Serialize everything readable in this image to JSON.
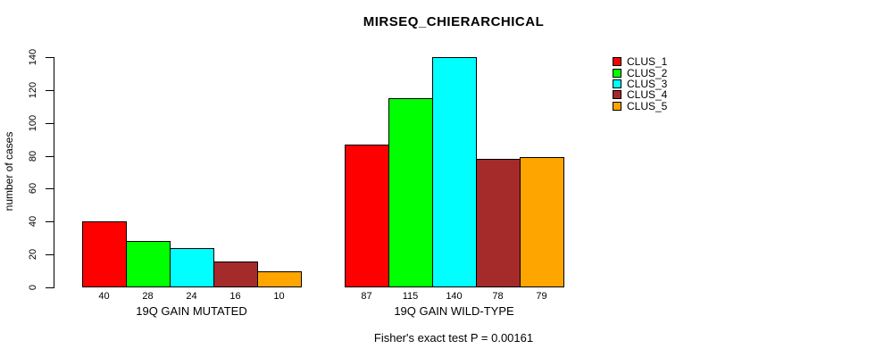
{
  "chart_data": {
    "type": "bar",
    "title": "MIRSEQ_CHIERARCHICAL",
    "ylabel": "number of cases",
    "xlabel": "",
    "ylim": [
      0,
      140
    ],
    "yticks": [
      0,
      20,
      40,
      60,
      80,
      100,
      120,
      140
    ],
    "grid": false,
    "legend_position": "top-right-outside",
    "bar_value_labels_shown": true,
    "annotation": "Fisher's exact test P = 0.00161",
    "categories": [
      "19Q GAIN MUTATED",
      "19Q GAIN WILD-TYPE"
    ],
    "series": [
      {
        "name": "CLUS_1",
        "color": "#FF0000",
        "values": [
          40,
          87
        ]
      },
      {
        "name": "CLUS_2",
        "color": "#00FF00",
        "values": [
          28,
          115
        ]
      },
      {
        "name": "CLUS_3",
        "color": "#00FFFF",
        "values": [
          24,
          140
        ]
      },
      {
        "name": "CLUS_4",
        "color": "#A52A2A",
        "values": [
          16,
          78
        ]
      },
      {
        "name": "CLUS_5",
        "color": "#FFA500",
        "values": [
          10,
          79
        ]
      }
    ]
  }
}
